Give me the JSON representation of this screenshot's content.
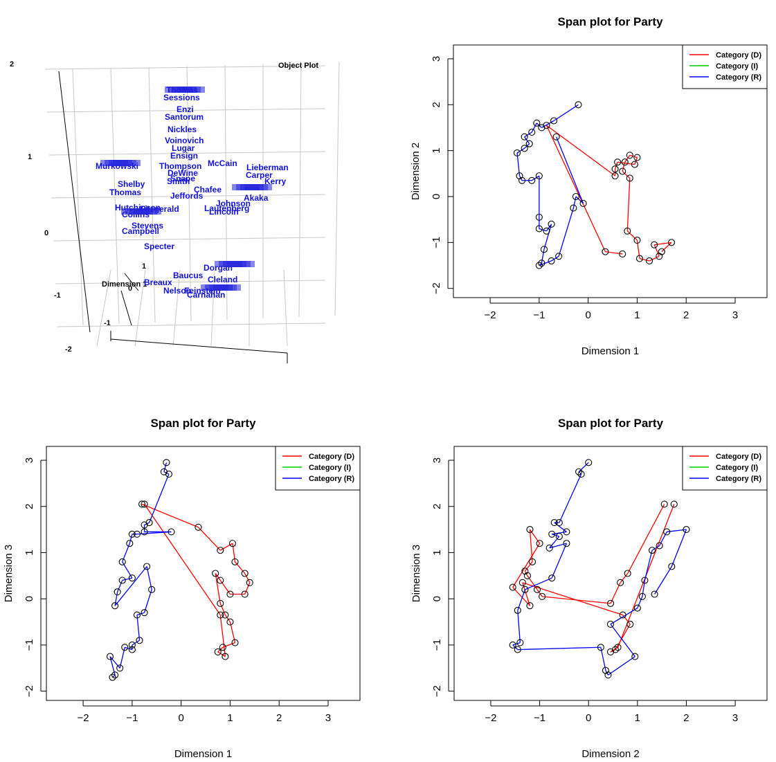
{
  "object_plot": {
    "title": "Object Plot",
    "axis_label": "Dimension 1",
    "z_ticks": [
      "2",
      "1",
      "0",
      "-1",
      "-2"
    ],
    "inner_ticks": [
      "1",
      "0",
      "-1"
    ],
    "names": [
      "Thomas",
      "Sessions",
      "Enzi",
      "Santorum",
      "Nickles",
      "Voinovich",
      "Lugar",
      "Ensign",
      "McCain",
      "Thompson",
      "DeWine",
      "Snape",
      "Smith",
      "Murkowski",
      "Shelby",
      "Thomas",
      "Chafee",
      "Jeffords",
      "Lieberman",
      "Carper",
      "Kerry",
      "Akaka",
      "Johnson",
      "Lautenberg",
      "Lincoln",
      "Campbell",
      "Stevens",
      "Specter",
      "Baucus",
      "Cleland",
      "Dorgan",
      "Nelson",
      "Breaux",
      "Feinstein",
      "Carnahan",
      "Hutchinson",
      "Fitzgerald",
      "Collins"
    ]
  },
  "chart_data": [
    {
      "type": "scatter",
      "title": "Span plot for Party",
      "xlabel": "Dimension 1",
      "ylabel": "Dimension 2",
      "xlim": [
        -2.75,
        3.65
      ],
      "ylim": [
        -2.2,
        3.3
      ],
      "xticks": [
        -2,
        -1,
        0,
        1,
        2,
        3
      ],
      "yticks": [
        -2,
        -1,
        0,
        1,
        2,
        3
      ],
      "legend": "top-right",
      "series": [
        {
          "name": "Category (D)",
          "color": "#ff0000",
          "points": [
            [
              1.5,
              -1.2
            ],
            [
              1.7,
              -1.0
            ],
            [
              1.35,
              -1.05
            ],
            [
              1.45,
              -1.3
            ],
            [
              1.25,
              -1.4
            ],
            [
              1.05,
              -1.35
            ],
            [
              1.0,
              -0.95
            ],
            [
              0.8,
              -0.75
            ],
            [
              0.85,
              0.4
            ],
            [
              0.7,
              0.55
            ],
            [
              0.75,
              0.75
            ],
            [
              0.85,
              0.9
            ],
            [
              1.0,
              0.85
            ],
            [
              0.95,
              0.7
            ],
            [
              0.6,
              0.75
            ],
            [
              0.55,
              0.6
            ],
            [
              0.55,
              0.45
            ],
            [
              -0.85,
              1.55
            ],
            [
              0.35,
              -1.2
            ],
            [
              0.7,
              -1.25
            ]
          ]
        },
        {
          "name": "Category (I)",
          "color": "#00cc00",
          "points": []
        },
        {
          "name": "Category (R)",
          "color": "#0000ff",
          "points": [
            [
              -0.2,
              2.0
            ],
            [
              -0.7,
              1.65
            ],
            [
              -0.95,
              1.5
            ],
            [
              -1.05,
              1.6
            ],
            [
              -1.15,
              1.4
            ],
            [
              -1.3,
              1.3
            ],
            [
              -1.2,
              1.15
            ],
            [
              -1.3,
              1.05
            ],
            [
              -1.45,
              0.95
            ],
            [
              -1.4,
              0.45
            ],
            [
              -1.35,
              0.35
            ],
            [
              -1.15,
              0.35
            ],
            [
              -1.0,
              0.45
            ],
            [
              -1.0,
              -0.45
            ],
            [
              -1.0,
              -0.7
            ],
            [
              -0.85,
              -0.75
            ],
            [
              -0.75,
              -0.6
            ],
            [
              -0.9,
              -1.15
            ],
            [
              -0.95,
              -1.45
            ],
            [
              -1.0,
              -1.5
            ],
            [
              -0.75,
              -1.4
            ],
            [
              -0.6,
              -1.3
            ],
            [
              -0.3,
              -0.25
            ],
            [
              -0.25,
              0.0
            ],
            [
              -0.1,
              -0.15
            ],
            [
              -0.65,
              1.3
            ]
          ]
        }
      ]
    },
    {
      "type": "scatter",
      "title": "Span plot for Party",
      "xlabel": "Dimension 1",
      "ylabel": "Dimension 3",
      "xlim": [
        -2.75,
        3.65
      ],
      "ylim": [
        -2.2,
        3.3
      ],
      "xticks": [
        -2,
        -1,
        0,
        1,
        2,
        3
      ],
      "yticks": [
        -2,
        -1,
        0,
        1,
        2,
        3
      ],
      "legend": "top-right",
      "series": [
        {
          "name": "Category (D)",
          "color": "#ff0000",
          "points": [
            [
              -0.8,
              2.05
            ],
            [
              0.35,
              1.55
            ],
            [
              0.8,
              1.05
            ],
            [
              1.05,
              1.2
            ],
            [
              1.1,
              0.8
            ],
            [
              1.3,
              0.55
            ],
            [
              1.4,
              0.35
            ],
            [
              1.3,
              0.1
            ],
            [
              1.0,
              0.1
            ],
            [
              0.8,
              0.4
            ],
            [
              0.7,
              0.55
            ],
            [
              0.8,
              -0.1
            ],
            [
              0.9,
              -0.35
            ],
            [
              1.0,
              -0.5
            ],
            [
              1.1,
              -0.95
            ],
            [
              0.85,
              -1.05
            ],
            [
              0.75,
              -1.15
            ],
            [
              0.9,
              -1.25
            ],
            [
              0.8,
              -0.35
            ],
            [
              -0.75,
              2.05
            ]
          ]
        },
        {
          "name": "Category (I)",
          "color": "#00cc00",
          "points": []
        },
        {
          "name": "Category (R)",
          "color": "#0000ff",
          "points": [
            [
              -0.3,
              2.95
            ],
            [
              -0.35,
              2.75
            ],
            [
              -0.25,
              2.7
            ],
            [
              -0.65,
              1.65
            ],
            [
              -0.75,
              1.6
            ],
            [
              -0.75,
              1.45
            ],
            [
              -0.2,
              1.45
            ],
            [
              -0.9,
              1.4
            ],
            [
              -1.0,
              1.4
            ],
            [
              -1.05,
              1.2
            ],
            [
              -1.2,
              0.8
            ],
            [
              -1.0,
              0.45
            ],
            [
              -1.2,
              0.4
            ],
            [
              -1.3,
              0.15
            ],
            [
              -1.35,
              -0.15
            ],
            [
              -0.7,
              0.7
            ],
            [
              -0.6,
              0.2
            ],
            [
              -0.75,
              -0.3
            ],
            [
              -0.9,
              -0.35
            ],
            [
              -0.85,
              -0.9
            ],
            [
              -1.0,
              -1.0
            ],
            [
              -1.0,
              -1.1
            ],
            [
              -1.15,
              -1.05
            ],
            [
              -1.25,
              -1.5
            ],
            [
              -1.45,
              -1.25
            ],
            [
              -1.35,
              -1.65
            ],
            [
              -1.4,
              -1.7
            ]
          ]
        }
      ]
    },
    {
      "type": "scatter",
      "title": "Span plot for Party",
      "xlabel": "Dimension 2",
      "ylabel": "Dimension 3",
      "xlim": [
        -2.75,
        3.65
      ],
      "ylim": [
        -2.2,
        3.3
      ],
      "xticks": [
        -2,
        -1,
        0,
        1,
        2,
        3
      ],
      "yticks": [
        -2,
        -1,
        0,
        1,
        2,
        3
      ],
      "legend": "top-right",
      "series": [
        {
          "name": "Category (D)",
          "color": "#ff0000",
          "points": [
            [
              1.55,
              2.05
            ],
            [
              0.8,
              0.55
            ],
            [
              0.65,
              0.35
            ],
            [
              0.45,
              -0.1
            ],
            [
              -0.95,
              0.05
            ],
            [
              -1.05,
              0.2
            ],
            [
              -1.25,
              0.5
            ],
            [
              -1.3,
              0.6
            ],
            [
              -1.15,
              0.8
            ],
            [
              -1.2,
              1.5
            ],
            [
              -1.0,
              1.2
            ],
            [
              -1.55,
              0.25
            ],
            [
              -1.2,
              -0.15
            ],
            [
              -1.35,
              0.35
            ],
            [
              0.7,
              -0.35
            ],
            [
              0.85,
              -0.55
            ],
            [
              0.55,
              -1.1
            ],
            [
              0.45,
              -1.15
            ],
            [
              0.6,
              -1.05
            ],
            [
              1.75,
              2.05
            ]
          ]
        },
        {
          "name": "Category (I)",
          "color": "#00cc00",
          "points": []
        },
        {
          "name": "Category (R)",
          "color": "#0000ff",
          "points": [
            [
              0.0,
              2.95
            ],
            [
              -0.2,
              2.75
            ],
            [
              -0.15,
              2.7
            ],
            [
              -0.6,
              1.65
            ],
            [
              -0.7,
              1.65
            ],
            [
              -0.45,
              1.45
            ],
            [
              -0.75,
              1.4
            ],
            [
              -0.6,
              1.35
            ],
            [
              -0.8,
              1.1
            ],
            [
              -0.45,
              1.2
            ],
            [
              -0.75,
              0.45
            ],
            [
              -1.3,
              0.2
            ],
            [
              -1.45,
              -0.25
            ],
            [
              -1.4,
              -0.95
            ],
            [
              -1.55,
              -1.0
            ],
            [
              -1.45,
              -1.1
            ],
            [
              0.25,
              -1.05
            ],
            [
              0.35,
              -1.55
            ],
            [
              0.4,
              -1.65
            ],
            [
              0.95,
              -1.25
            ],
            [
              0.45,
              -0.55
            ],
            [
              1.0,
              -0.2
            ],
            [
              1.1,
              0.05
            ],
            [
              1.15,
              0.4
            ],
            [
              1.3,
              1.05
            ],
            [
              1.45,
              1.15
            ],
            [
              1.6,
              1.45
            ],
            [
              2.0,
              1.5
            ],
            [
              1.7,
              0.7
            ],
            [
              1.35,
              0.1
            ]
          ]
        }
      ]
    }
  ]
}
